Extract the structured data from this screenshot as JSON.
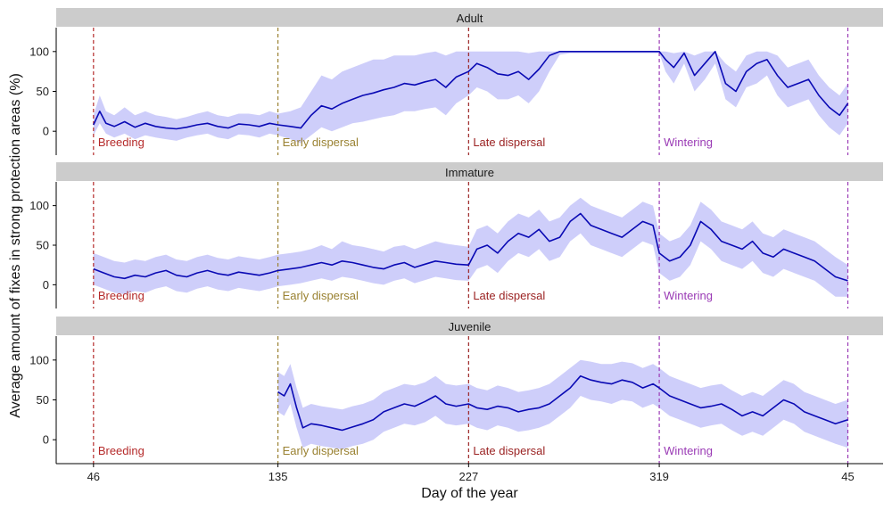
{
  "chart_data": {
    "type": "line",
    "xlabel": "Day of the year",
    "ylabel": "Average amount of fixes in strong protection areas (%)",
    "x_ticks": [
      46,
      135,
      227,
      319,
      45
    ],
    "x_tick_positions": [
      0,
      89,
      181,
      273,
      364
    ],
    "x_domain": [
      -18,
      381
    ],
    "y_ticks": [
      0,
      50,
      100
    ],
    "ylim": [
      -30,
      130
    ],
    "grid": false,
    "ribbon_color": "#c5c6f9",
    "line_color": "#0a0ab4",
    "phases": [
      {
        "label": "Breeding",
        "day": 46,
        "pos": 0,
        "color": "#b52a2a"
      },
      {
        "label": "Early dispersal",
        "day": 135,
        "pos": 89,
        "color": "#9a8232"
      },
      {
        "label": "Late dispersal",
        "day": 227,
        "pos": 181,
        "color": "#9b2323"
      },
      {
        "label": "Wintering",
        "day": 319,
        "pos": 273,
        "color": "#9a3ab5"
      },
      {
        "label": "",
        "day": 45,
        "pos": 364,
        "color": "#9a3ab5"
      }
    ],
    "panels": [
      {
        "name": "Adult",
        "x": [
          0,
          3,
          6,
          10,
          15,
          20,
          25,
          30,
          35,
          40,
          45,
          50,
          55,
          60,
          65,
          70,
          75,
          80,
          85,
          89,
          95,
          100,
          105,
          110,
          115,
          120,
          125,
          130,
          135,
          140,
          145,
          150,
          155,
          160,
          165,
          170,
          175,
          181,
          185,
          190,
          195,
          200,
          205,
          210,
          215,
          220,
          225,
          230,
          235,
          240,
          245,
          250,
          255,
          260,
          265,
          270,
          273,
          276,
          280,
          285,
          290,
          295,
          300,
          305,
          310,
          315,
          320,
          325,
          330,
          335,
          340,
          345,
          350,
          355,
          360,
          364
        ],
        "y": [
          8,
          25,
          10,
          6,
          12,
          5,
          10,
          6,
          4,
          3,
          5,
          8,
          10,
          6,
          4,
          9,
          8,
          6,
          10,
          8,
          6,
          4,
          20,
          32,
          28,
          35,
          40,
          45,
          48,
          52,
          55,
          60,
          58,
          62,
          65,
          55,
          68,
          75,
          85,
          80,
          72,
          70,
          75,
          65,
          78,
          95,
          100,
          100,
          100,
          100,
          100,
          100,
          100,
          100,
          100,
          100,
          100,
          90,
          80,
          98,
          70,
          85,
          100,
          60,
          50,
          75,
          85,
          90,
          70,
          55,
          60,
          65,
          45,
          30,
          20,
          35
        ],
        "lower": [
          -5,
          10,
          -3,
          -8,
          -3,
          -10,
          -5,
          -8,
          -10,
          -12,
          -8,
          -5,
          -3,
          -8,
          -10,
          -4,
          -5,
          -8,
          -3,
          -5,
          -10,
          -15,
          -5,
          5,
          0,
          5,
          10,
          12,
          15,
          18,
          20,
          25,
          25,
          28,
          30,
          20,
          35,
          45,
          55,
          50,
          40,
          40,
          45,
          35,
          50,
          75,
          96,
          98,
          98,
          98,
          98,
          98,
          98,
          98,
          98,
          98,
          98,
          75,
          60,
          85,
          50,
          65,
          85,
          40,
          30,
          55,
          60,
          70,
          45,
          30,
          35,
          40,
          20,
          5,
          -5,
          10
        ],
        "upper": [
          20,
          45,
          25,
          20,
          30,
          20,
          25,
          20,
          18,
          15,
          18,
          22,
          25,
          20,
          18,
          22,
          22,
          20,
          25,
          22,
          25,
          30,
          50,
          70,
          65,
          75,
          80,
          85,
          90,
          90,
          95,
          95,
          95,
          98,
          100,
          95,
          100,
          100,
          100,
          100,
          100,
          100,
          100,
          98,
          100,
          100,
          100,
          100,
          100,
          100,
          100,
          100,
          100,
          100,
          100,
          100,
          100,
          100,
          98,
          100,
          95,
          100,
          100,
          85,
          75,
          95,
          100,
          100,
          95,
          80,
          85,
          90,
          70,
          55,
          45,
          60
        ]
      },
      {
        "name": "Immature",
        "x": [
          0,
          5,
          10,
          15,
          20,
          25,
          30,
          35,
          40,
          45,
          50,
          55,
          60,
          65,
          70,
          75,
          80,
          85,
          89,
          95,
          100,
          105,
          110,
          115,
          120,
          125,
          130,
          135,
          140,
          145,
          150,
          155,
          160,
          165,
          170,
          175,
          181,
          185,
          190,
          195,
          200,
          205,
          210,
          215,
          220,
          225,
          230,
          235,
          240,
          245,
          250,
          255,
          260,
          265,
          270,
          273,
          278,
          283,
          288,
          293,
          298,
          303,
          308,
          313,
          318,
          323,
          328,
          333,
          338,
          343,
          348,
          353,
          358,
          364
        ],
        "y": [
          20,
          15,
          10,
          8,
          12,
          10,
          15,
          18,
          12,
          10,
          15,
          18,
          14,
          12,
          16,
          14,
          12,
          15,
          18,
          20,
          22,
          25,
          28,
          25,
          30,
          28,
          25,
          22,
          20,
          25,
          28,
          22,
          26,
          30,
          28,
          26,
          25,
          45,
          50,
          40,
          55,
          65,
          60,
          70,
          55,
          60,
          80,
          90,
          75,
          70,
          65,
          60,
          70,
          80,
          75,
          40,
          30,
          35,
          50,
          80,
          70,
          55,
          50,
          45,
          55,
          40,
          35,
          45,
          40,
          35,
          30,
          20,
          10,
          5
        ],
        "lower": [
          0,
          -5,
          -10,
          -12,
          -8,
          -10,
          -5,
          -2,
          -8,
          -10,
          -5,
          -2,
          -6,
          -8,
          -4,
          -6,
          -8,
          -5,
          -2,
          0,
          2,
          5,
          8,
          5,
          10,
          8,
          5,
          2,
          0,
          5,
          8,
          2,
          6,
          10,
          8,
          6,
          5,
          20,
          25,
          15,
          30,
          40,
          35,
          45,
          30,
          35,
          55,
          65,
          50,
          45,
          40,
          35,
          45,
          55,
          50,
          15,
          5,
          10,
          25,
          55,
          45,
          30,
          25,
          20,
          30,
          15,
          10,
          20,
          15,
          10,
          5,
          -5,
          -15,
          -15
        ],
        "upper": [
          40,
          35,
          30,
          28,
          32,
          30,
          35,
          38,
          32,
          30,
          35,
          38,
          34,
          32,
          36,
          34,
          32,
          35,
          38,
          40,
          42,
          45,
          50,
          45,
          55,
          50,
          48,
          45,
          42,
          48,
          50,
          45,
          50,
          55,
          52,
          50,
          48,
          70,
          75,
          65,
          80,
          90,
          85,
          95,
          80,
          85,
          100,
          110,
          100,
          95,
          90,
          85,
          95,
          105,
          100,
          65,
          55,
          60,
          75,
          105,
          95,
          80,
          75,
          70,
          80,
          65,
          60,
          70,
          65,
          60,
          55,
          45,
          35,
          25
        ]
      },
      {
        "name": "Juvenile",
        "x": [
          89,
          92,
          95,
          98,
          101,
          105,
          110,
          115,
          120,
          125,
          130,
          135,
          140,
          145,
          150,
          155,
          160,
          165,
          170,
          175,
          181,
          185,
          190,
          195,
          200,
          205,
          210,
          215,
          220,
          225,
          230,
          235,
          240,
          245,
          250,
          255,
          260,
          265,
          270,
          273,
          278,
          283,
          288,
          293,
          298,
          303,
          308,
          313,
          318,
          323,
          328,
          333,
          338,
          343,
          348,
          353,
          358,
          364
        ],
        "y": [
          60,
          55,
          70,
          40,
          15,
          20,
          18,
          15,
          12,
          16,
          20,
          25,
          35,
          40,
          45,
          42,
          48,
          55,
          45,
          42,
          45,
          40,
          38,
          42,
          40,
          35,
          38,
          40,
          45,
          55,
          65,
          80,
          75,
          72,
          70,
          75,
          72,
          65,
          70,
          65,
          55,
          50,
          45,
          40,
          42,
          45,
          38,
          30,
          35,
          30,
          40,
          50,
          45,
          35,
          30,
          25,
          20,
          25
        ],
        "lower": [
          35,
          30,
          45,
          15,
          -10,
          -5,
          -8,
          -10,
          -12,
          -8,
          -5,
          0,
          10,
          15,
          20,
          18,
          22,
          30,
          20,
          18,
          20,
          15,
          12,
          18,
          15,
          10,
          12,
          15,
          20,
          30,
          40,
          55,
          50,
          48,
          45,
          50,
          48,
          40,
          45,
          40,
          30,
          25,
          20,
          15,
          18,
          20,
          12,
          5,
          10,
          5,
          15,
          25,
          20,
          10,
          5,
          0,
          -5,
          -10
        ],
        "upper": [
          85,
          80,
          95,
          65,
          40,
          45,
          42,
          40,
          38,
          42,
          45,
          50,
          60,
          65,
          70,
          68,
          72,
          80,
          70,
          68,
          70,
          65,
          62,
          68,
          65,
          60,
          62,
          65,
          70,
          80,
          90,
          100,
          98,
          95,
          95,
          98,
          96,
          90,
          95,
          90,
          80,
          75,
          70,
          65,
          68,
          70,
          62,
          55,
          60,
          55,
          65,
          75,
          70,
          60,
          55,
          50,
          45,
          50
        ]
      }
    ]
  }
}
